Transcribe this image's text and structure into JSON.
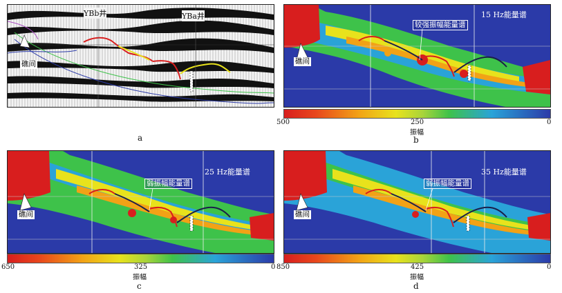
{
  "panels": {
    "a": {
      "caption": "a",
      "well_left": "YBb井",
      "well_right": "YBa井",
      "reef_label": "礁间"
    },
    "b": {
      "caption": "b",
      "freq_label": "15 Hz能量谱",
      "callout": "较强振幅能量谱",
      "reef_label": "礁间",
      "colorbar": {
        "left": "500",
        "mid": "250",
        "right": "0",
        "title": "振幅"
      }
    },
    "c": {
      "caption": "c",
      "freq_label": "25 Hz能量谱",
      "callout": "弱振幅能量谱",
      "reef_label": "礁间",
      "colorbar": {
        "left": "650",
        "mid": "325",
        "right": "0",
        "title": "振幅"
      }
    },
    "d": {
      "caption": "d",
      "freq_label": "35 Hz能量谱",
      "callout": "弱振幅能量谱",
      "reef_label": "礁间",
      "colorbar": {
        "left": "850",
        "mid": "425",
        "right": "0",
        "title": "振幅"
      }
    }
  },
  "colors": {
    "high": "#d81e1e",
    "mid_high": "#f2a216",
    "mid": "#e8e21c",
    "mid_low": "#3ec24a",
    "low": "#2aa3d8",
    "base": "#2b3aa8"
  }
}
